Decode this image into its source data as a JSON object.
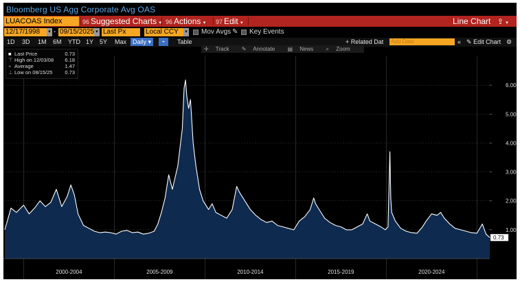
{
  "window": {
    "title": "Bloomberg US Agg Corporate Avg OAS"
  },
  "command_bar": {
    "ticker": "LUACOAS Index",
    "suggested_num": "96",
    "suggested_label": "Suggested Charts",
    "actions_num": "96",
    "actions_label": "Actions",
    "edit_num": "97",
    "edit_label": "Edit",
    "line_chart_label": "Line Chart"
  },
  "date_bar": {
    "start_date": "12/17/1998",
    "end_date": "09/15/2025",
    "field": "Last Px",
    "currency": "Local CCY",
    "mov_avgs": "Mov Avgs",
    "key_events": "Key Events"
  },
  "period_bar": {
    "periods": [
      "1D",
      "3D",
      "1M",
      "6M",
      "YTD",
      "1Y",
      "5Y",
      "Max"
    ],
    "frequency": "Daily",
    "table_label": "Table",
    "related_data": "+ Related Dat",
    "add_data_placeholder": "Add Data",
    "edit_chart": "Edit Chart"
  },
  "chart_tools": {
    "track": "Track",
    "annotate": "Annotate",
    "news": "News",
    "zoom": "Zoom"
  },
  "legend": {
    "last_price_label": "Last Price",
    "last_price_value": "0.73",
    "high_label": "High on 12/03/08",
    "high_value": "6.18",
    "average_label": "Average",
    "average_value": "1.47",
    "low_label": "Low on 08/15/25",
    "low_value": "0.73"
  },
  "colors": {
    "bg": "#000000",
    "accent_orange": "#f5a623",
    "command_red": "#b2241f",
    "area_fill": "#0e2a4f",
    "line": "#ffffff"
  },
  "chart_data": {
    "type": "area",
    "ylim": [
      0,
      7
    ],
    "yticks": [
      "1.00",
      "2.00",
      "3.00",
      "4.00",
      "5.00",
      "6.00"
    ],
    "last_value_label": "0.73",
    "x_period_labels": [
      "2000-2004",
      "2005-2009",
      "2010-2014",
      "2015-2019",
      "2020-2024"
    ],
    "x": [
      1998.96,
      1999.3,
      1999.6,
      2000.0,
      2000.3,
      2000.6,
      2000.9,
      2001.2,
      2001.5,
      2001.8,
      2002.1,
      2002.4,
      2002.6,
      2002.8,
      2003.0,
      2003.3,
      2003.6,
      2003.9,
      2004.2,
      2004.5,
      2004.8,
      2005.1,
      2005.4,
      2005.7,
      2006.0,
      2006.3,
      2006.6,
      2006.9,
      2007.2,
      2007.4,
      2007.6,
      2007.8,
      2008.0,
      2008.2,
      2008.5,
      2008.75,
      2008.85,
      2008.93,
      2009.0,
      2009.1,
      2009.2,
      2009.35,
      2009.5,
      2009.7,
      2009.9,
      2010.2,
      2010.4,
      2010.6,
      2010.9,
      2011.2,
      2011.5,
      2011.75,
      2011.9,
      2012.2,
      2012.5,
      2012.8,
      2013.1,
      2013.4,
      2013.7,
      2014.0,
      2014.3,
      2014.6,
      2014.9,
      2015.2,
      2015.5,
      2015.8,
      2016.0,
      2016.1,
      2016.3,
      2016.6,
      2016.9,
      2017.2,
      2017.5,
      2017.8,
      2018.1,
      2018.4,
      2018.7,
      2018.95,
      2019.1,
      2019.4,
      2019.7,
      2019.95,
      2020.1,
      2020.2,
      2020.25,
      2020.3,
      2020.5,
      2020.8,
      2021.1,
      2021.4,
      2021.7,
      2022.0,
      2022.2,
      2022.5,
      2022.8,
      2023.0,
      2023.2,
      2023.5,
      2023.8,
      2024.1,
      2024.4,
      2024.7,
      2025.0,
      2025.3,
      2025.5,
      2025.71
    ],
    "series": [
      {
        "values": [
          1.0,
          1.75,
          1.6,
          1.85,
          1.55,
          1.75,
          2.0,
          1.8,
          1.95,
          2.4,
          1.8,
          2.15,
          2.55,
          2.2,
          1.55,
          1.15,
          1.05,
          0.95,
          0.9,
          0.92,
          0.9,
          0.85,
          0.95,
          0.98,
          0.9,
          0.92,
          0.85,
          0.88,
          0.95,
          1.2,
          1.6,
          2.1,
          2.9,
          2.4,
          3.2,
          4.5,
          5.9,
          6.18,
          5.6,
          5.2,
          5.5,
          4.0,
          3.2,
          2.4,
          2.0,
          1.7,
          1.9,
          1.6,
          1.5,
          1.4,
          1.7,
          2.5,
          2.3,
          2.0,
          1.7,
          1.5,
          1.35,
          1.25,
          1.3,
          1.15,
          1.1,
          1.05,
          1.0,
          1.3,
          1.45,
          1.7,
          2.1,
          1.9,
          1.7,
          1.4,
          1.25,
          1.15,
          1.1,
          1.0,
          1.0,
          1.1,
          1.2,
          1.55,
          1.3,
          1.2,
          1.1,
          1.0,
          1.1,
          3.7,
          2.1,
          1.6,
          1.3,
          1.05,
          0.95,
          0.9,
          0.88,
          1.1,
          1.3,
          1.55,
          1.5,
          1.6,
          1.4,
          1.2,
          1.05,
          1.0,
          0.95,
          0.9,
          0.88,
          1.2,
          0.85,
          0.73
        ]
      }
    ]
  }
}
